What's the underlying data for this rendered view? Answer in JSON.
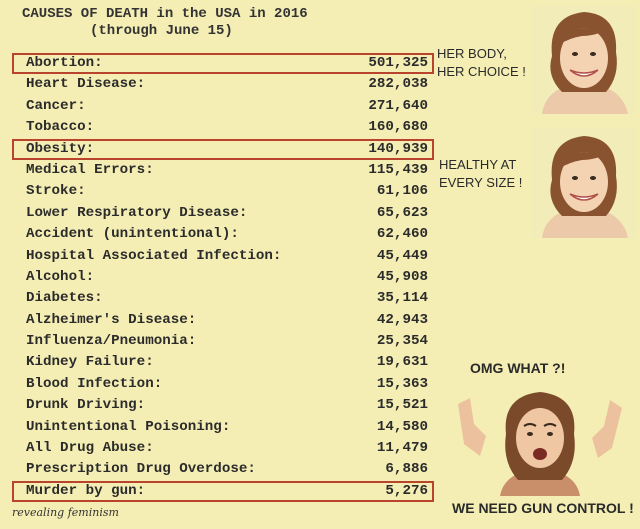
{
  "title": {
    "line1": "CAUSES OF DEATH in the USA in 2016",
    "line2": "(through June 15)"
  },
  "rows": [
    {
      "cause": "Abortion:",
      "count": "501,325"
    },
    {
      "cause": "Heart Disease:",
      "count": "282,038"
    },
    {
      "cause": "Cancer:",
      "count": "271,640"
    },
    {
      "cause": "Tobacco:",
      "count": "160,680"
    },
    {
      "cause": "Obesity:",
      "count": "140,939"
    },
    {
      "cause": "Medical Errors:",
      "count": "115,439"
    },
    {
      "cause": "Stroke:",
      "count": "61,106"
    },
    {
      "cause": "Lower Respiratory Disease:",
      "count": "65,623"
    },
    {
      "cause": "Accident (unintentional):",
      "count": "62,460"
    },
    {
      "cause": "Hospital Associated Infection:",
      "count": "45,449"
    },
    {
      "cause": "Alcohol:",
      "count": "45,908"
    },
    {
      "cause": "Diabetes:",
      "count": "35,114"
    },
    {
      "cause": "Alzheimer's Disease:",
      "count": "42,943"
    },
    {
      "cause": "Influenza/Pneumonia:",
      "count": "25,354"
    },
    {
      "cause": "Kidney Failure:",
      "count": "19,631"
    },
    {
      "cause": "Blood Infection:",
      "count": "15,363"
    },
    {
      "cause": "Drunk Driving:",
      "count": "15,521"
    },
    {
      "cause": "Unintentional Poisoning:",
      "count": "14,580"
    },
    {
      "cause": "All Drug Abuse:",
      "count": "11,479"
    },
    {
      "cause": "Prescription Drug Overdose:",
      "count": "6,886"
    },
    {
      "cause": "Murder by gun:",
      "count": "5,276"
    }
  ],
  "highlight_color": "#b8442e",
  "callouts": {
    "abortion_line1": "HER BODY,",
    "abortion_line2": "HER CHOICE !",
    "obesity_line1": "HEALTHY AT",
    "obesity_line2": "EVERY SIZE !",
    "omg": "OMG WHAT ?!",
    "gun": "WE NEED GUN CONTROL !"
  },
  "watermark": "revealing feminism"
}
